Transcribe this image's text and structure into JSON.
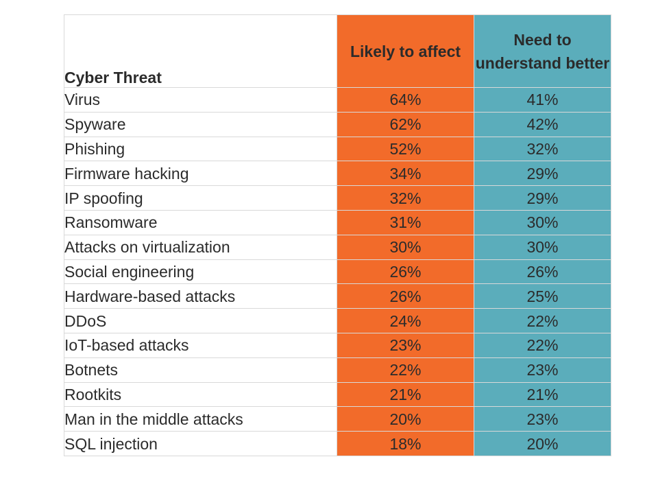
{
  "colors": {
    "likely_fill": "#f26b2a",
    "need_fill": "#5badbb"
  },
  "chart_data": {
    "type": "table",
    "columns": [
      "Cyber Threat",
      "Likely to affect",
      "Need to understand better"
    ],
    "rows": [
      {
        "threat": "Virus",
        "likely": "64%",
        "need": "41%"
      },
      {
        "threat": "Spyware",
        "likely": "62%",
        "need": "42%"
      },
      {
        "threat": "Phishing",
        "likely": "52%",
        "need": "32%"
      },
      {
        "threat": "Firmware hacking",
        "likely": "34%",
        "need": "29%"
      },
      {
        "threat": "IP spoofing",
        "likely": "32%",
        "need": "29%"
      },
      {
        "threat": "Ransomware",
        "likely": "31%",
        "need": "30%"
      },
      {
        "threat": "Attacks on virtualization",
        "likely": "30%",
        "need": "30%"
      },
      {
        "threat": "Social engineering",
        "likely": "26%",
        "need": "26%"
      },
      {
        "threat": "Hardware-based attacks",
        "likely": "26%",
        "need": "25%"
      },
      {
        "threat": "DDoS",
        "likely": "24%",
        "need": "22%"
      },
      {
        "threat": "IoT-based attacks",
        "likely": "23%",
        "need": "22%"
      },
      {
        "threat": "Botnets",
        "likely": "22%",
        "need": "23%"
      },
      {
        "threat": "Rootkits",
        "likely": "21%",
        "need": "21%"
      },
      {
        "threat": "Man in the middle attacks",
        "likely": "20%",
        "need": "23%"
      },
      {
        "threat": "SQL injection",
        "likely": "18%",
        "need": "20%"
      }
    ]
  }
}
